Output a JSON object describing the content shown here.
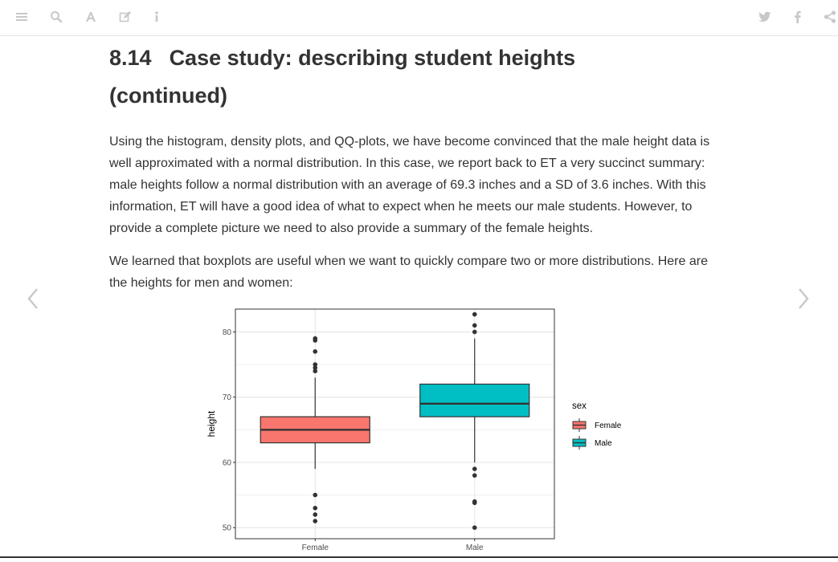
{
  "toolbar": {
    "left_icons": [
      "menu-icon",
      "search-icon",
      "font-icon",
      "edit-icon",
      "info-icon"
    ],
    "right_icons": [
      "twitter-icon",
      "facebook-icon",
      "share-icon"
    ]
  },
  "navigation": {
    "prev_icon": "chevron-left-icon",
    "next_icon": "chevron-right-icon"
  },
  "article": {
    "section_number": "8.14",
    "title_line1": "Case study: describing student heights",
    "title_line2": "(continued)",
    "paragraph1": "Using the histogram, density plots, and QQ-plots, we have become convinced that the male height data is well approximated with a normal distribution. In this case, we report back to ET a very succinct summary: male heights follow a normal distribution with an average of 69.3 inches and a SD of 3.6 inches. With this information, ET will have a good idea of what to expect when he meets our male students. However, to provide a complete picture we need to also provide a summary of the female heights.",
    "paragraph2": "We learned that boxplots are useful when we want to quickly compare two or more distributions. Here are the heights for men and women:"
  },
  "colors": {
    "female_fill": "#F8766D",
    "male_fill": "#00BFC4",
    "text": "#333333",
    "icon": "#cccccc"
  },
  "chart_data": {
    "type": "boxplot",
    "ylabel": "height",
    "ylim": [
      48.3,
      83.5
    ],
    "yticks": [
      50,
      60,
      70,
      80
    ],
    "categories": [
      "Female",
      "Male"
    ],
    "legend_title": "sex",
    "legend_position": "right",
    "grid": true,
    "series": [
      {
        "name": "Female",
        "color": "#F8766D",
        "whisker_low": 59,
        "q1": 63,
        "median": 65,
        "q3": 67,
        "whisker_high": 73,
        "outliers": [
          79,
          78.7,
          77,
          75,
          74.5,
          74,
          55,
          53,
          52,
          51
        ]
      },
      {
        "name": "Male",
        "color": "#00BFC4",
        "whisker_low": 60,
        "q1": 67,
        "median": 69,
        "q3": 72,
        "whisker_high": 79,
        "outliers": [
          82.7,
          81,
          80,
          59,
          58,
          54,
          53.8,
          50
        ]
      }
    ]
  }
}
